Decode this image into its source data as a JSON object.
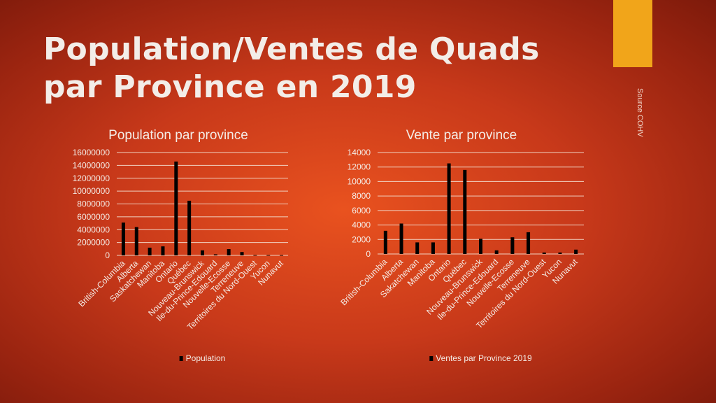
{
  "slide": {
    "title": "Population/Ventes de Quads par Province en 2019",
    "source": "Source COHV",
    "accent_color": "#F1A51A"
  },
  "chart_data": [
    {
      "type": "bar",
      "title": "Population par province",
      "categories": [
        "British-Columbia",
        "Alberta",
        "Saskatchewan",
        "Manitoba",
        "Ontario",
        "Québec",
        "Nouveau-Brunswick",
        "Ile-du-Prince-Edouard",
        "Nouvelle-Ecosse",
        "Terreneuve",
        "Territoires du Nord-Ouest",
        "Yucon",
        "Nunavut"
      ],
      "series": [
        {
          "name": "Population",
          "values": [
            5100000,
            4400000,
            1200000,
            1400000,
            14600000,
            8500000,
            780000,
            160000,
            970000,
            520000,
            45000,
            42000,
            39000
          ],
          "color": "#000000"
        }
      ],
      "yticks": [
        "0",
        "2000000",
        "4000000",
        "6000000",
        "8000000",
        "10000000",
        "12000000",
        "14000000",
        "16000000"
      ],
      "ylim": [
        0,
        16000000
      ],
      "grid": true,
      "legend_position": "bottom"
    },
    {
      "type": "bar",
      "title": "Vente par province",
      "categories": [
        "British-Columbia",
        "Alberta",
        "Sakatchewan",
        "Manitoba",
        "Ontario",
        "Québec",
        "Nouveau-Brunswick",
        "Ile-du-Prince-Edouard",
        "Nouvelle-Ecosse",
        "Terreneuve",
        "Territoires du Nord-Ouest",
        "Yucon",
        "Nunavut"
      ],
      "series": [
        {
          "name": "Ventes par Province 2019",
          "values": [
            3200,
            4200,
            1600,
            1600,
            12500,
            11600,
            2100,
            500,
            2300,
            3000,
            200,
            200,
            600
          ],
          "color": "#000000"
        }
      ],
      "yticks": [
        "0",
        "2000",
        "4000",
        "6000",
        "8000",
        "10000",
        "12000",
        "14000"
      ],
      "ylim": [
        0,
        14000
      ],
      "grid": true,
      "legend_position": "bottom"
    }
  ]
}
